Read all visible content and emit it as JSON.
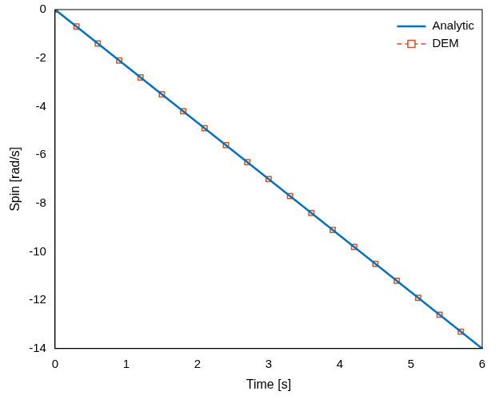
{
  "chart_data": {
    "type": "line",
    "x_label": "Time [s]",
    "y_label": "Spin [rad/s]",
    "xlim": [
      0,
      6
    ],
    "xticks": [
      0,
      1,
      2,
      3,
      4,
      5,
      6
    ],
    "ylim": [
      -14,
      0
    ],
    "yticks": [
      -14,
      -12,
      -10,
      -8,
      -6,
      -4,
      -2,
      0
    ],
    "grid": false,
    "legend": "top-right",
    "series": [
      {
        "name": "Analytic",
        "color": "#0072bd",
        "marker": "none",
        "line_style": "solid",
        "x": [
          0,
          6
        ],
        "values": [
          0,
          -14
        ]
      },
      {
        "name": "DEM",
        "color": "#d95319",
        "marker": "square",
        "line_style": "dashed",
        "x": [
          0,
          0.3,
          0.6,
          0.9,
          1.2,
          1.5,
          1.8,
          2.1,
          2.4,
          2.7,
          3.0,
          3.3,
          3.6,
          3.9,
          4.2,
          4.5,
          4.8,
          5.1,
          5.4,
          5.7
        ],
        "values": [
          0,
          -0.7,
          -1.4,
          -2.1,
          -2.8,
          -3.5,
          -4.2,
          -4.9,
          -5.6,
          -6.3,
          -7.0,
          -7.7,
          -8.4,
          -9.1,
          -9.8,
          -10.5,
          -11.2,
          -11.9,
          -12.6,
          -13.3
        ]
      }
    ]
  }
}
